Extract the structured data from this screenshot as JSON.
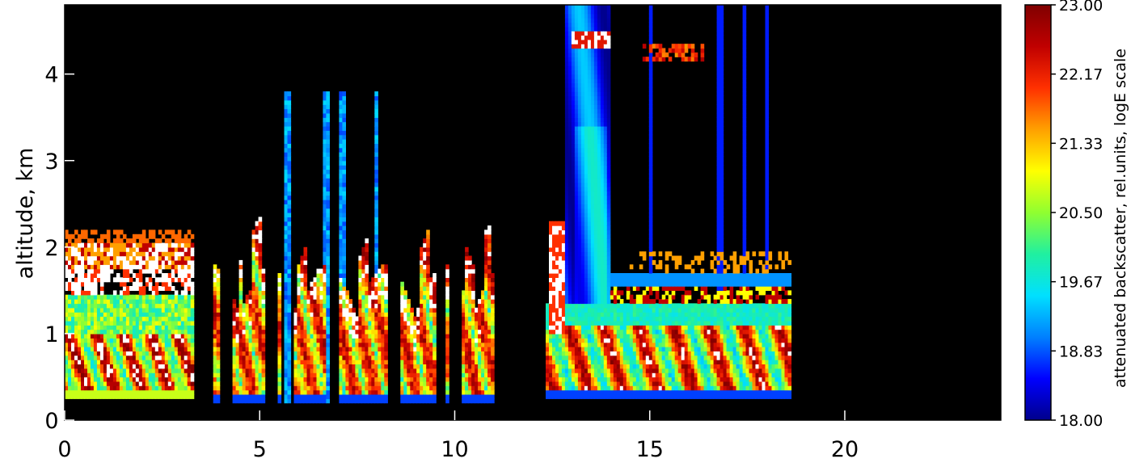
{
  "chart_data": {
    "type": "heatmap",
    "title": "",
    "xlabel": "",
    "ylabel": "altitude,  km",
    "xlim": [
      0,
      24
    ],
    "ylim": [
      0,
      4.8
    ],
    "x_ticks": [
      0,
      5,
      10,
      15,
      20
    ],
    "y_ticks": [
      0,
      1,
      2,
      3,
      4
    ],
    "colorbar": {
      "label": "attenuated backscatter,  rel.units,  logE  scale",
      "min": 18.0,
      "max": 23.0,
      "ticks": [
        "18.00",
        "18.83",
        "19.67",
        "20.50",
        "21.33",
        "22.17",
        "23.00"
      ],
      "colormap": [
        "#00008c",
        "#0000ff",
        "#0080ff",
        "#00e0ff",
        "#20f0a0",
        "#90ff30",
        "#ffff00",
        "#ffa000",
        "#ff3000",
        "#c00000",
        "#800000",
        "#ffffff"
      ],
      "saturated_color": "#ffffff"
    },
    "background": "#000000",
    "features": [
      {
        "x": [
          0,
          3.3
        ],
        "base": 0.25,
        "top": 2.2,
        "description": "boundary layer cloud/aerosol with white saturated top at 1.5-2.0 km"
      },
      {
        "x": [
          3.7,
          11.2
        ],
        "base": 0.2,
        "top": 2.4,
        "description": "broken scattered columns"
      },
      {
        "x": [
          12.3,
          18.6
        ],
        "base": 0.25,
        "top": 2.0,
        "description": "boundary layer with saturated layer 1.3-1.7 km"
      },
      {
        "x": [
          12.8,
          14.0
        ],
        "base": 0.25,
        "top": 4.8,
        "description": "tall blue plume column"
      },
      {
        "x": [
          13.0,
          14.0
        ],
        "base": 4.3,
        "top": 4.5,
        "description": "high thin cloud"
      },
      {
        "x": [
          14.8,
          16.4
        ],
        "base": 4.15,
        "top": 4.35,
        "description": "high thin cloud"
      }
    ]
  }
}
